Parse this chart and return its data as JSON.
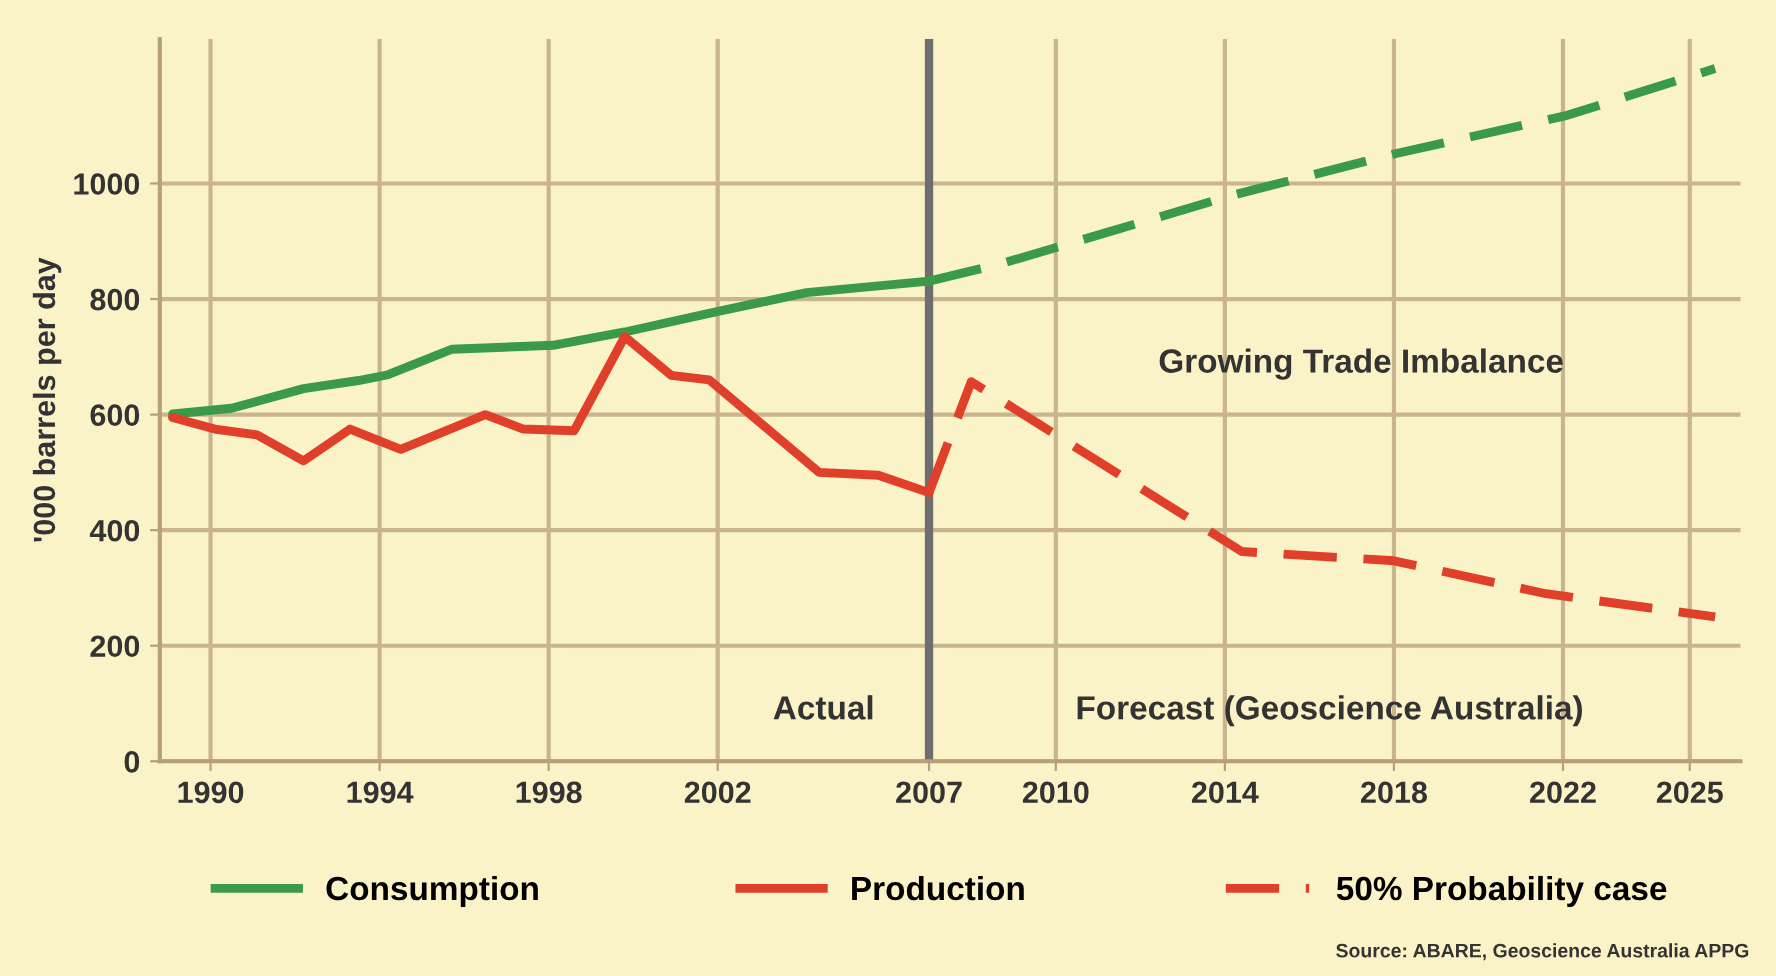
{
  "chart_data": {
    "type": "line",
    "ylabel": "'000 barrels per day",
    "xlim": [
      1988.8,
      2026.2
    ],
    "ylim": [
      0,
      1250
    ],
    "xticks": [
      1990,
      1994,
      1998,
      2002,
      2007,
      2010,
      2014,
      2018,
      2022,
      2025
    ],
    "yticks": [
      0,
      200,
      400,
      600,
      800,
      1000
    ],
    "grid": true,
    "legend": "bottom",
    "marker": "none",
    "series": [
      {
        "name": "Consumption",
        "color": "#3a9a48",
        "line_style": "solid",
        "x": [
          1989.1,
          1990.5,
          1992.2,
          1993.5,
          1994.2,
          1995.7,
          1998.1,
          1999.8,
          2001.9,
          2004.1,
          2007.0
        ],
        "values": [
          601,
          611,
          645,
          659,
          669,
          713,
          720,
          743,
          777,
          811,
          831
        ]
      },
      {
        "color": "#3a9a48",
        "line_style": "dashed",
        "x": [
          2007.0,
          2008.7,
          2014.2,
          2018.0,
          2022.1,
          2025.6
        ],
        "values": [
          831,
          861,
          980,
          1051,
          1118,
          1199
        ]
      },
      {
        "name": "Production",
        "color": "#e0402a",
        "line_style": "solid",
        "x": [
          1989.1,
          1990.1,
          1991.1,
          1992.2,
          1993.3,
          1994.5,
          1996.5,
          1997.4,
          1998.6,
          1999.8,
          2000.9,
          2001.8,
          2004.4,
          2005.8,
          2007.0
        ],
        "values": [
          595,
          575,
          565,
          520,
          575,
          540,
          600,
          575,
          572,
          735,
          668,
          660,
          500,
          495,
          465
        ]
      },
      {
        "name": "50% Probability case",
        "color": "#e0402a",
        "line_style": "dashed",
        "x": [
          2007.0,
          2008.0,
          2014.4,
          2018.0,
          2021.6,
          2025.6
        ],
        "values": [
          465,
          657,
          363,
          347,
          290,
          250
        ]
      }
    ],
    "ref_lines": [
      {
        "axis": "x",
        "value": 2007,
        "color": "#6e6e6e",
        "line_style": "solid"
      }
    ],
    "annotations": [
      "Actual",
      "Forecast (Geoscience Australia)",
      "Growing Trade Imbalance",
      "Source: ABARE, Geoscience Australia APPG"
    ]
  }
}
